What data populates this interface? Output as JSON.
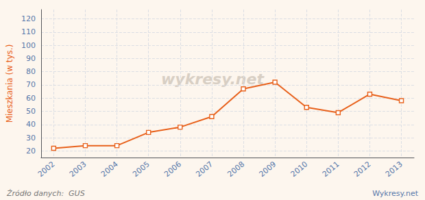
{
  "chart_data": {
    "type": "line",
    "x": [
      2002,
      2003,
      2004,
      2005,
      2006,
      2007,
      2008,
      2009,
      2010,
      2011,
      2012,
      2013
    ],
    "values": [
      22,
      24,
      24,
      34,
      38,
      46,
      67,
      72,
      53,
      49,
      63,
      58
    ],
    "color": "#e8601a",
    "marker": "square",
    "xlim": [
      2001.6,
      2013.4
    ],
    "xticks": [
      2002,
      2003,
      2004,
      2005,
      2006,
      2007,
      2008,
      2009,
      2010,
      2011,
      2012,
      2013
    ],
    "ylim": [
      15,
      127
    ],
    "yticks": [
      20,
      30,
      40,
      50,
      60,
      70,
      80,
      90,
      100,
      110,
      120
    ],
    "ylabel": "Mieszkania (w tys.)",
    "annotations": [
      "wykresy.net",
      "Źródło danych:  GUS",
      "Wykresy.net"
    ],
    "grid": true
  }
}
